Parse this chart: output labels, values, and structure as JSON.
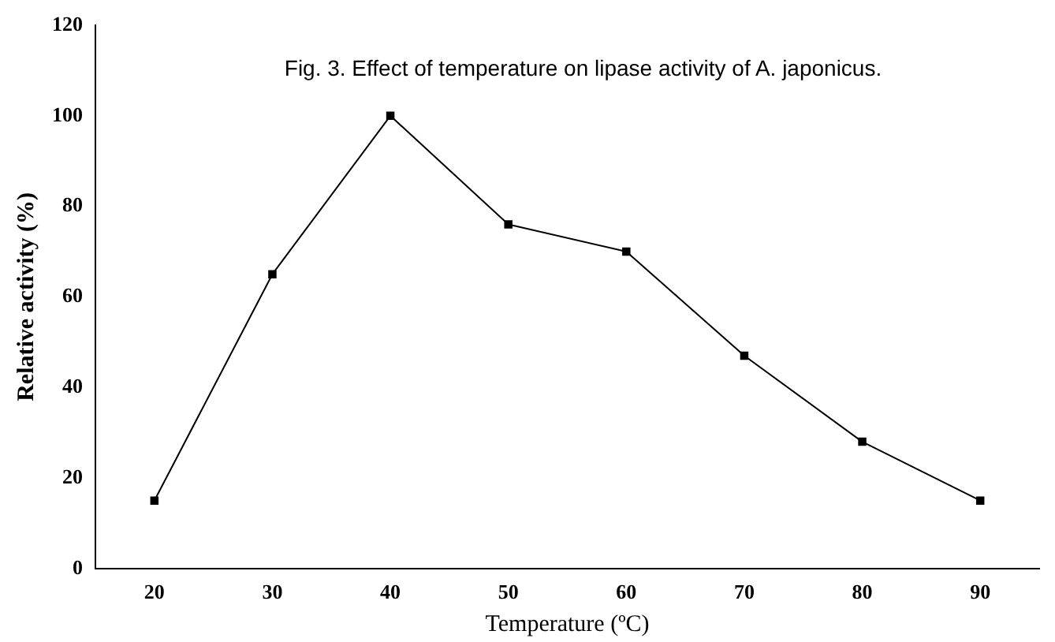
{
  "chart_data": {
    "type": "line",
    "title": "Fig. 3. Effect of temperature on lipase activity of A. japonicus.",
    "xlabel": "Temperature (ºC)",
    "ylabel": "Relative activity (%)",
    "categories": [
      "20",
      "30",
      "40",
      "50",
      "60",
      "70",
      "80",
      "90"
    ],
    "series": [
      {
        "color": "#000000",
        "values": [
          15,
          65,
          100,
          76,
          70,
          47,
          28,
          15
        ]
      }
    ],
    "ylim": [
      0,
      120
    ],
    "yticks": [
      0,
      20,
      40,
      60,
      80,
      100,
      120
    ],
    "grid": false,
    "legend": false,
    "marker": "square",
    "line_style": "solid"
  }
}
